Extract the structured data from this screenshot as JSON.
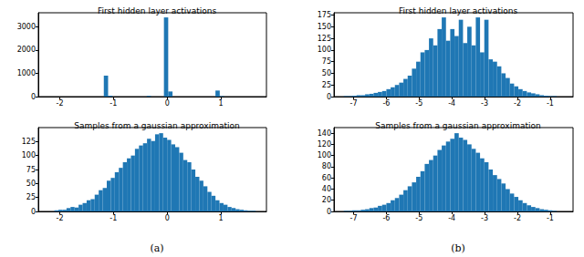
{
  "chart_data": [
    {
      "type": "histogram",
      "title": "First hidden layer activations",
      "color": "#1f77b4",
      "grid": false,
      "bins": [
        -2.3,
        -2.22,
        -2.14,
        -2.06,
        -1.98,
        -1.9,
        -1.82,
        -1.74,
        -1.66,
        -1.58,
        -1.5,
        -1.42,
        -1.34,
        -1.26,
        -1.18,
        -1.1,
        -1.02,
        -0.94,
        -0.86,
        -0.78,
        -0.7,
        -0.62,
        -0.54,
        -0.46,
        -0.38,
        -0.3,
        -0.22,
        -0.14,
        -0.06,
        0.02,
        0.1,
        0.18,
        0.26,
        0.34,
        0.42,
        0.5,
        0.58,
        0.66,
        0.74,
        0.82,
        0.9,
        0.98,
        1.06,
        1.14,
        1.22,
        1.3,
        1.38,
        1.46,
        1.54,
        1.62,
        1.7
      ],
      "counts": [
        0,
        0,
        0,
        0,
        0,
        0,
        0,
        0,
        0,
        0,
        0,
        0,
        0,
        0,
        900,
        40,
        0,
        0,
        0,
        0,
        0,
        0,
        0,
        0,
        30,
        0,
        0,
        0,
        3400,
        220,
        0,
        0,
        0,
        0,
        0,
        0,
        0,
        0,
        0,
        0,
        260,
        20,
        0,
        0,
        0,
        0,
        0,
        0,
        0,
        0
      ],
      "xlim": [
        -2.4,
        1.85
      ],
      "xticks": [
        -2,
        -1,
        0,
        1
      ],
      "ylim": [
        0,
        3600
      ],
      "yticks": [
        0,
        1000,
        2000,
        3000
      ]
    },
    {
      "type": "histogram",
      "title": "Samples from a gaussian approximation",
      "color": "#1f77b4",
      "grid": false,
      "bins": [
        -2.1,
        -2.025,
        -1.95,
        -1.875,
        -1.8,
        -1.725,
        -1.65,
        -1.575,
        -1.5,
        -1.425,
        -1.35,
        -1.275,
        -1.2,
        -1.125,
        -1.05,
        -0.975,
        -0.9,
        -0.825,
        -0.75,
        -0.675,
        -0.6,
        -0.525,
        -0.45,
        -0.375,
        -0.3,
        -0.225,
        -0.15,
        -0.075,
        0,
        0.075,
        0.15,
        0.225,
        0.3,
        0.375,
        0.45,
        0.525,
        0.6,
        0.675,
        0.75,
        0.825,
        0.9,
        0.975,
        1.05,
        1.125,
        1.2,
        1.275,
        1.35,
        1.425,
        1.5,
        1.575,
        1.65
      ],
      "counts": [
        2,
        3,
        3,
        6,
        8,
        7,
        12,
        15,
        20,
        22,
        30,
        38,
        42,
        55,
        60,
        70,
        78,
        88,
        95,
        100,
        112,
        118,
        122,
        130,
        126,
        138,
        140,
        132,
        128,
        120,
        115,
        105,
        92,
        88,
        75,
        62,
        55,
        45,
        35,
        28,
        20,
        15,
        12,
        8,
        6,
        4,
        3,
        2,
        1,
        1
      ],
      "xlim": [
        -2.4,
        1.85
      ],
      "xticks": [
        -2,
        -1,
        0,
        1
      ],
      "ylim": [
        0,
        150
      ],
      "yticks": [
        0,
        25,
        50,
        75,
        100,
        125
      ]
    },
    {
      "type": "histogram",
      "title": "First hidden layer activations",
      "color": "#1f77b4",
      "grid": false,
      "bins": [
        -7.3,
        -7.17,
        -7.04,
        -6.91,
        -6.78,
        -6.65,
        -6.52,
        -6.39,
        -6.26,
        -6.13,
        -6,
        -5.87,
        -5.74,
        -5.61,
        -5.48,
        -5.35,
        -5.22,
        -5.09,
        -4.96,
        -4.83,
        -4.7,
        -4.57,
        -4.44,
        -4.31,
        -4.18,
        -4.05,
        -3.92,
        -3.79,
        -3.66,
        -3.53,
        -3.4,
        -3.27,
        -3.14,
        -3.01,
        -2.88,
        -2.75,
        -2.62,
        -2.49,
        -2.36,
        -2.23,
        -2.1,
        -1.97,
        -1.84,
        -1.71,
        -1.58,
        -1.45,
        -1.32,
        -1.19,
        -1.06,
        -0.93,
        -0.8
      ],
      "counts": [
        1,
        1,
        2,
        3,
        3,
        5,
        6,
        8,
        10,
        12,
        16,
        20,
        25,
        30,
        38,
        45,
        60,
        75,
        95,
        100,
        125,
        110,
        145,
        170,
        120,
        145,
        130,
        165,
        115,
        150,
        110,
        170,
        95,
        165,
        80,
        75,
        65,
        50,
        40,
        28,
        22,
        16,
        12,
        9,
        7,
        5,
        3,
        2,
        1,
        1
      ],
      "xlim": [
        -7.6,
        -0.3
      ],
      "xticks": [
        -7,
        -6,
        -5,
        -4,
        -3,
        -2,
        -1
      ],
      "ylim": [
        0,
        180
      ],
      "yticks": [
        0,
        25,
        50,
        75,
        100,
        125,
        150,
        175
      ]
    },
    {
      "type": "histogram",
      "title": "Samples from a gaussian approximation",
      "color": "#1f77b4",
      "grid": false,
      "bins": [
        -7.3,
        -7.17,
        -7.04,
        -6.91,
        -6.78,
        -6.65,
        -6.52,
        -6.39,
        -6.26,
        -6.13,
        -6,
        -5.87,
        -5.74,
        -5.61,
        -5.48,
        -5.35,
        -5.22,
        -5.09,
        -4.96,
        -4.83,
        -4.7,
        -4.57,
        -4.44,
        -4.31,
        -4.18,
        -4.05,
        -3.92,
        -3.79,
        -3.66,
        -3.53,
        -3.4,
        -3.27,
        -3.14,
        -3.01,
        -2.88,
        -2.75,
        -2.62,
        -2.49,
        -2.36,
        -2.23,
        -2.1,
        -1.97,
        -1.84,
        -1.71,
        -1.58,
        -1.45,
        -1.32,
        -1.19,
        -1.06,
        -0.93,
        -0.8
      ],
      "counts": [
        1,
        1,
        2,
        2,
        3,
        4,
        6,
        7,
        10,
        12,
        15,
        20,
        24,
        30,
        38,
        45,
        52,
        62,
        72,
        85,
        92,
        100,
        110,
        118,
        125,
        130,
        140,
        132,
        128,
        120,
        112,
        105,
        95,
        88,
        75,
        65,
        58,
        50,
        40,
        32,
        26,
        20,
        15,
        11,
        8,
        6,
        4,
        3,
        2,
        1
      ],
      "xlim": [
        -7.6,
        -0.3
      ],
      "xticks": [
        -7,
        -6,
        -5,
        -4,
        -3,
        -2,
        -1
      ],
      "ylim": [
        0,
        150
      ],
      "yticks": [
        0,
        20,
        40,
        60,
        80,
        100,
        120,
        140
      ]
    }
  ],
  "captions": [
    "(a)",
    "(b)"
  ]
}
